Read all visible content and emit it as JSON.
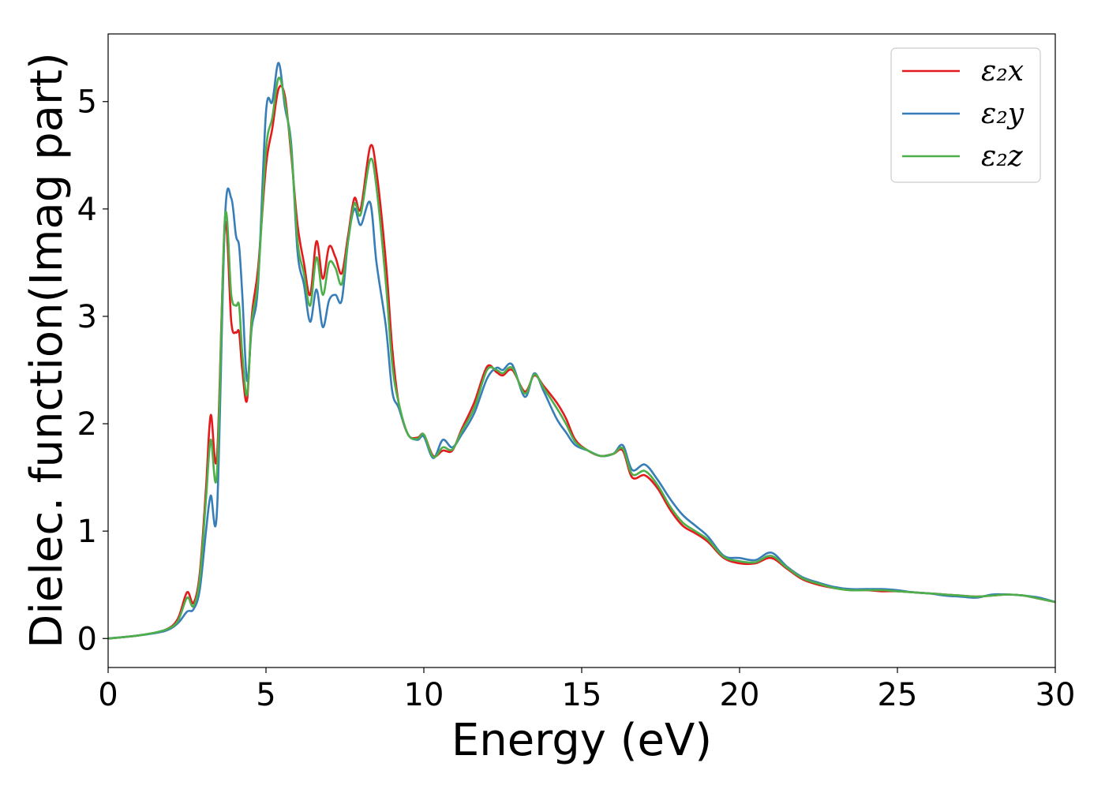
{
  "chart_data": {
    "type": "line",
    "xlabel": "Energy (eV)",
    "ylabel": "Dielec. function(Imag part)",
    "xlim": [
      0,
      30
    ],
    "ylim": [
      -0.27,
      5.63
    ],
    "xticks": [
      "0",
      "5",
      "10",
      "15",
      "20",
      "25",
      "30"
    ],
    "yticks": [
      "0",
      "1",
      "2",
      "3",
      "4",
      "5"
    ],
    "grid": false,
    "legend_position": "top-right",
    "series": [
      {
        "name": "ε₂x",
        "color": "#e41a1c",
        "x": [
          0,
          1,
          1.8,
          2.2,
          2.5,
          2.7,
          2.9,
          3.1,
          3.25,
          3.45,
          3.7,
          3.9,
          4.05,
          4.15,
          4.25,
          4.4,
          4.55,
          4.75,
          5.0,
          5.2,
          5.4,
          5.6,
          5.8,
          6.0,
          6.2,
          6.4,
          6.6,
          6.8,
          7.0,
          7.2,
          7.4,
          7.6,
          7.8,
          8.0,
          8.3,
          8.5,
          8.8,
          9.0,
          9.2,
          9.5,
          9.8,
          10.0,
          10.3,
          10.6,
          10.9,
          11.2,
          11.6,
          12.0,
          12.3,
          12.5,
          12.8,
          13.2,
          13.5,
          13.8,
          14.2,
          14.5,
          14.8,
          15.2,
          15.6,
          16.0,
          16.3,
          16.6,
          17.0,
          17.4,
          17.8,
          18.2,
          18.6,
          19.0,
          19.5,
          20.0,
          20.5,
          21.0,
          21.5,
          22.0,
          22.5,
          23.0,
          23.5,
          24.0,
          24.5,
          25.0,
          25.5,
          26.0,
          26.5,
          27.0,
          27.5,
          28.0,
          28.5,
          29.0,
          29.5,
          30.0
        ],
        "y": [
          0.0,
          0.03,
          0.08,
          0.18,
          0.43,
          0.33,
          0.6,
          1.4,
          2.08,
          1.7,
          3.85,
          2.95,
          2.85,
          2.85,
          2.5,
          2.22,
          3.0,
          3.45,
          4.4,
          4.75,
          5.12,
          5.05,
          4.5,
          3.85,
          3.5,
          3.2,
          3.7,
          3.35,
          3.65,
          3.55,
          3.4,
          3.75,
          4.1,
          4.0,
          4.58,
          4.35,
          3.5,
          2.7,
          2.2,
          1.9,
          1.87,
          1.9,
          1.7,
          1.75,
          1.75,
          1.95,
          2.2,
          2.53,
          2.48,
          2.45,
          2.5,
          2.3,
          2.45,
          2.35,
          2.2,
          2.05,
          1.85,
          1.75,
          1.7,
          1.72,
          1.75,
          1.5,
          1.52,
          1.4,
          1.2,
          1.05,
          0.98,
          0.9,
          0.75,
          0.7,
          0.7,
          0.75,
          0.65,
          0.55,
          0.5,
          0.47,
          0.45,
          0.45,
          0.44,
          0.44,
          0.43,
          0.42,
          0.41,
          0.4,
          0.39,
          0.4,
          0.41,
          0.4,
          0.37,
          0.34
        ]
      },
      {
        "name": "ε₂y",
        "color": "#377eb8",
        "x": [
          0,
          1,
          1.8,
          2.2,
          2.5,
          2.7,
          2.9,
          3.1,
          3.25,
          3.45,
          3.7,
          3.9,
          4.05,
          4.15,
          4.25,
          4.4,
          4.55,
          4.75,
          5.0,
          5.2,
          5.4,
          5.6,
          5.8,
          6.0,
          6.2,
          6.4,
          6.6,
          6.8,
          7.0,
          7.2,
          7.4,
          7.6,
          7.8,
          8.0,
          8.3,
          8.5,
          8.8,
          9.0,
          9.2,
          9.5,
          9.8,
          10.0,
          10.3,
          10.6,
          10.9,
          11.2,
          11.6,
          12.0,
          12.3,
          12.5,
          12.8,
          13.2,
          13.5,
          13.8,
          14.2,
          14.5,
          14.8,
          15.2,
          15.6,
          16.0,
          16.3,
          16.6,
          17.0,
          17.4,
          17.8,
          18.2,
          18.6,
          19.0,
          19.5,
          20.0,
          20.5,
          21.0,
          21.5,
          22.0,
          22.5,
          23.0,
          23.5,
          24.0,
          24.5,
          25.0,
          25.5,
          26.0,
          26.5,
          27.0,
          27.5,
          28.0,
          28.5,
          29.0,
          29.5,
          30.0
        ],
        "y": [
          0.0,
          0.03,
          0.07,
          0.14,
          0.25,
          0.27,
          0.45,
          1.0,
          1.33,
          1.2,
          3.9,
          4.1,
          3.75,
          3.65,
          3.2,
          2.4,
          2.9,
          3.3,
          4.9,
          5.0,
          5.36,
          4.95,
          4.6,
          3.6,
          3.3,
          2.95,
          3.25,
          2.9,
          3.15,
          3.2,
          3.15,
          3.7,
          4.0,
          3.85,
          4.06,
          3.5,
          2.9,
          2.3,
          2.15,
          1.9,
          1.85,
          1.88,
          1.68,
          1.85,
          1.78,
          1.9,
          2.1,
          2.42,
          2.52,
          2.5,
          2.55,
          2.25,
          2.47,
          2.3,
          2.05,
          1.92,
          1.8,
          1.75,
          1.7,
          1.72,
          1.8,
          1.57,
          1.62,
          1.48,
          1.3,
          1.15,
          1.05,
          0.95,
          0.77,
          0.75,
          0.73,
          0.8,
          0.67,
          0.57,
          0.52,
          0.48,
          0.46,
          0.46,
          0.46,
          0.45,
          0.43,
          0.42,
          0.4,
          0.39,
          0.38,
          0.41,
          0.41,
          0.4,
          0.38,
          0.34
        ]
      },
      {
        "name": "ε₂z",
        "color": "#4daf4a",
        "x": [
          0,
          1,
          1.8,
          2.2,
          2.5,
          2.7,
          2.9,
          3.1,
          3.25,
          3.45,
          3.7,
          3.9,
          4.05,
          4.15,
          4.25,
          4.4,
          4.55,
          4.75,
          5.0,
          5.2,
          5.4,
          5.6,
          5.8,
          6.0,
          6.2,
          6.4,
          6.6,
          6.8,
          7.0,
          7.2,
          7.4,
          7.6,
          7.8,
          8.0,
          8.3,
          8.5,
          8.8,
          9.0,
          9.2,
          9.5,
          9.8,
          10.0,
          10.3,
          10.6,
          10.9,
          11.2,
          11.6,
          12.0,
          12.3,
          12.5,
          12.8,
          13.2,
          13.5,
          13.8,
          14.2,
          14.5,
          14.8,
          15.2,
          15.6,
          16.0,
          16.3,
          16.6,
          17.0,
          17.4,
          17.8,
          18.2,
          18.6,
          19.0,
          19.5,
          20.0,
          20.5,
          21.0,
          21.5,
          22.0,
          22.5,
          23.0,
          23.5,
          24.0,
          24.5,
          25.0,
          25.5,
          26.0,
          26.5,
          27.0,
          27.5,
          28.0,
          28.5,
          29.0,
          29.5,
          30.0
        ],
        "y": [
          0.0,
          0.03,
          0.08,
          0.16,
          0.38,
          0.3,
          0.55,
          1.3,
          1.85,
          1.55,
          3.92,
          3.2,
          3.1,
          3.1,
          2.65,
          2.27,
          2.95,
          3.35,
          4.55,
          4.85,
          5.22,
          5.0,
          4.55,
          3.7,
          3.4,
          3.1,
          3.55,
          3.2,
          3.5,
          3.45,
          3.3,
          3.7,
          4.05,
          3.95,
          4.46,
          4.2,
          3.3,
          2.55,
          2.2,
          1.9,
          1.86,
          1.9,
          1.69,
          1.78,
          1.76,
          1.93,
          2.15,
          2.5,
          2.5,
          2.47,
          2.52,
          2.28,
          2.46,
          2.33,
          2.15,
          2.0,
          1.83,
          1.75,
          1.7,
          1.72,
          1.77,
          1.53,
          1.56,
          1.43,
          1.23,
          1.08,
          1.0,
          0.92,
          0.76,
          0.72,
          0.71,
          0.77,
          0.66,
          0.56,
          0.51,
          0.47,
          0.45,
          0.45,
          0.45,
          0.44,
          0.43,
          0.42,
          0.41,
          0.4,
          0.39,
          0.4,
          0.41,
          0.4,
          0.37,
          0.34
        ]
      }
    ]
  },
  "legend": {
    "items": [
      {
        "label": "ε₂x",
        "color": "#e41a1c"
      },
      {
        "label": "ε₂y",
        "color": "#377eb8"
      },
      {
        "label": "ε₂z",
        "color": "#4daf4a"
      }
    ]
  }
}
